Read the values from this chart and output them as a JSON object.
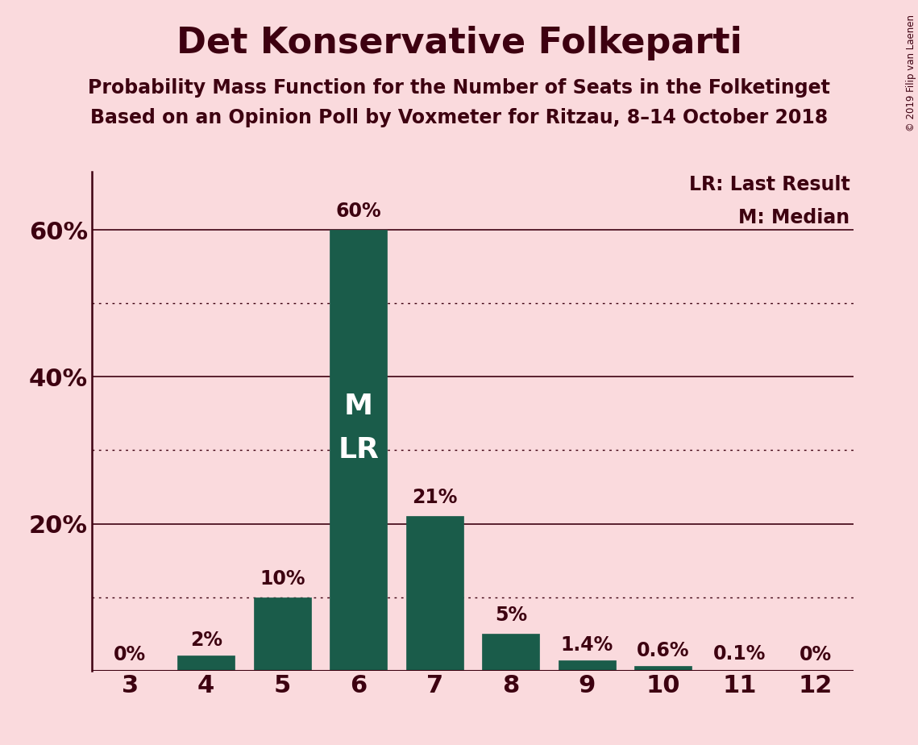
{
  "title": "Det Konservative Folkeparti",
  "subtitle1": "Probability Mass Function for the Number of Seats in the Folketinget",
  "subtitle2": "Based on an Opinion Poll by Voxmeter for Ritzau, 8–14 October 2018",
  "copyright": "© 2019 Filip van Laenen",
  "categories": [
    3,
    4,
    5,
    6,
    7,
    8,
    9,
    10,
    11,
    12
  ],
  "values": [
    0.0,
    2.0,
    10.0,
    60.0,
    21.0,
    5.0,
    1.4,
    0.6,
    0.1,
    0.0
  ],
  "bar_labels": [
    "0%",
    "2%",
    "10%",
    "60%",
    "21%",
    "5%",
    "1.4%",
    "0.6%",
    "0.1%",
    "0%"
  ],
  "bar_color": "#1a5c4a",
  "background_color": "#fadadd",
  "text_color": "#3d0010",
  "median_bar": 6,
  "lr_bar": 6,
  "legend_lr": "LR: Last Result",
  "legend_m": "M: Median",
  "ytick_positions": [
    0,
    20,
    40,
    60
  ],
  "ytick_labels": [
    "",
    "20%",
    "40%",
    "60%"
  ],
  "solid_gridlines": [
    20,
    40,
    60
  ],
  "dotted_gridlines": [
    10,
    30,
    50
  ],
  "ylim": [
    0,
    68
  ],
  "bar_width": 0.75
}
